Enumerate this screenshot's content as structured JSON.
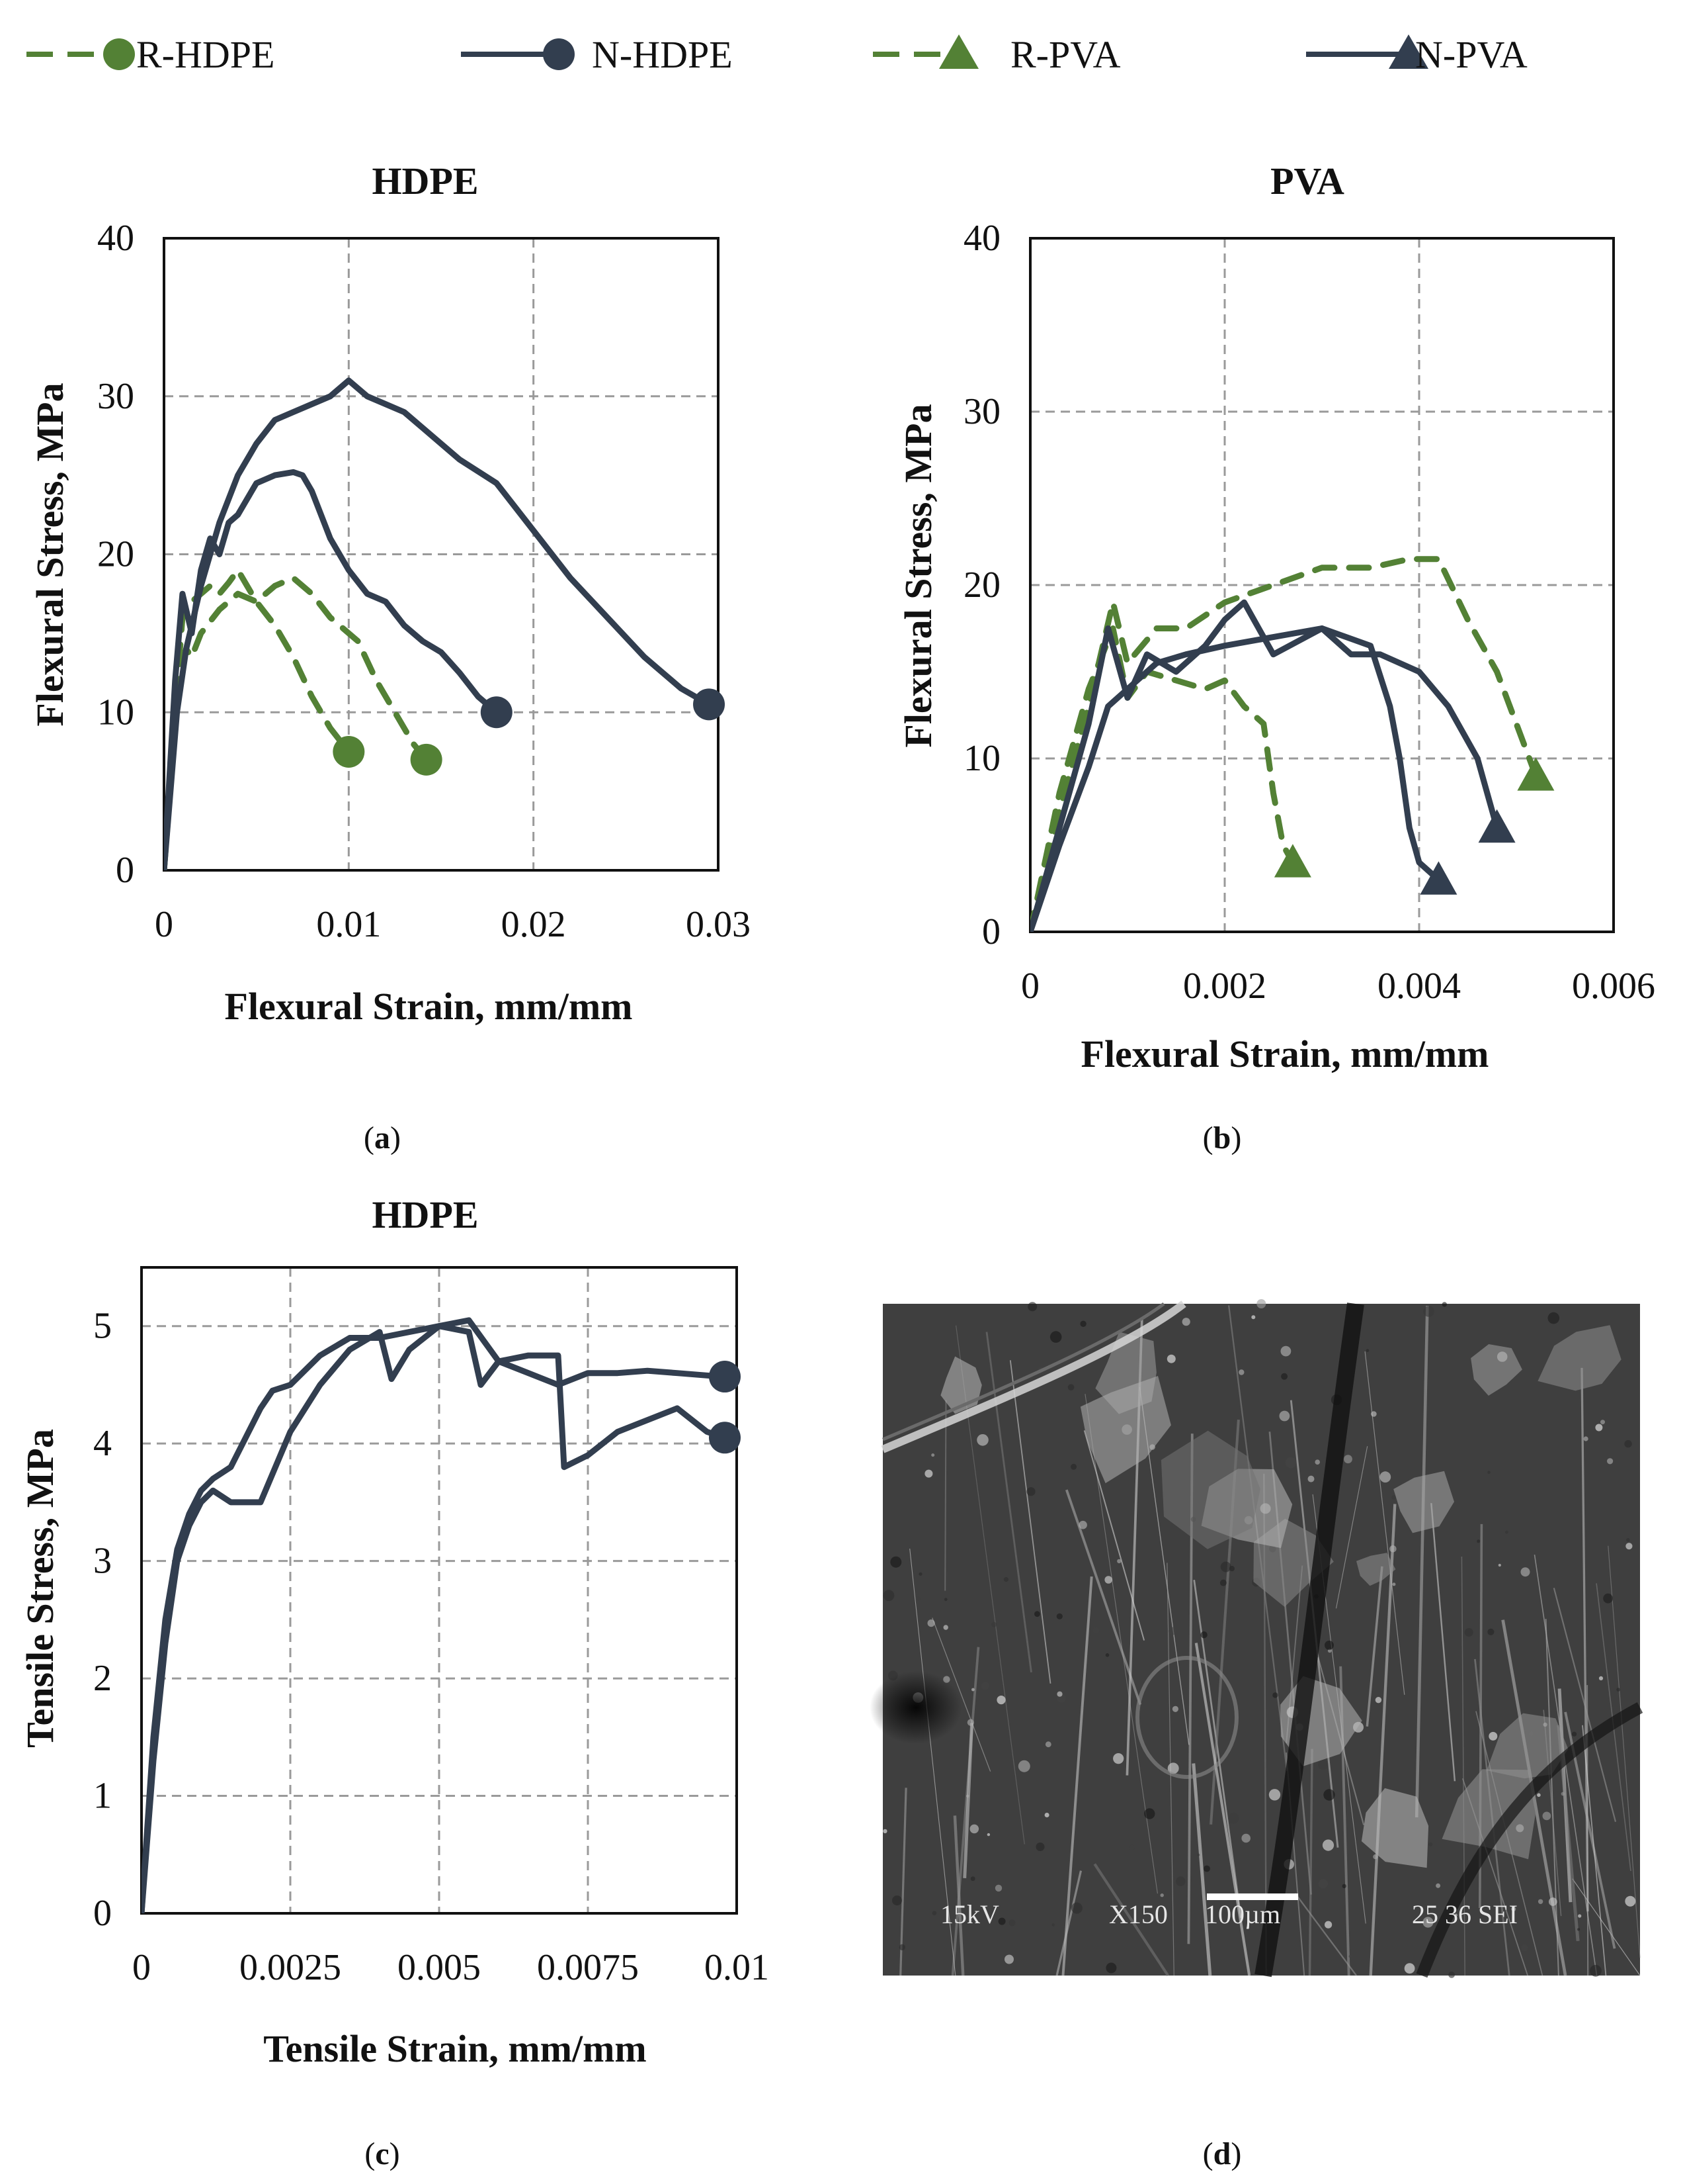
{
  "colors": {
    "recycled": "#538135",
    "new": "#323E4F"
  },
  "legend": [
    {
      "label": "R-HDPE",
      "style": "dashed",
      "marker": "circle",
      "color": "#538135"
    },
    {
      "label": "N-HDPE",
      "style": "solid",
      "marker": "circle",
      "color": "#323E4F"
    },
    {
      "label": "R-PVA",
      "style": "dashed",
      "marker": "triangle",
      "color": "#538135"
    },
    {
      "label": "N-PVA",
      "style": "solid",
      "marker": "triangle",
      "color": "#323E4F"
    }
  ],
  "captions": {
    "a": "a",
    "b": "b",
    "c": "c",
    "d": "d"
  },
  "sem_image": {
    "label_kv": "15kV",
    "label_mag": "X150",
    "label_scale": "100µm",
    "label_id": "25 36 SEI"
  },
  "chart_data": [
    {
      "id": "a",
      "type": "line",
      "title": "HDPE",
      "xlabel": "Flexural Strain, mm/mm",
      "ylabel": "Flexural Stress, MPa",
      "xlim": [
        0,
        0.03
      ],
      "ylim": [
        0,
        40
      ],
      "xticks": [
        0,
        0.01,
        0.02,
        0.03
      ],
      "xtick_labels": [
        "0",
        "0.01",
        "0.02",
        "0.03"
      ],
      "yticks": [
        0,
        10,
        20,
        30,
        40
      ],
      "ytick_labels": [
        "0",
        "10",
        "20",
        "30",
        "40"
      ],
      "grid": true,
      "series": [
        {
          "name": "R-HDPE",
          "style": "dashed",
          "marker": "circle",
          "color": "#538135",
          "x": [
            0,
            0.0005,
            0.0008,
            0.001,
            0.0015,
            0.002,
            0.0025,
            0.003,
            0.0035,
            0.004,
            0.0045,
            0.005,
            0.006,
            0.007,
            0.008,
            0.009,
            0.01
          ],
          "y": [
            0,
            8,
            13,
            16,
            17,
            17.5,
            18,
            17.5,
            18.2,
            19,
            18,
            17,
            15.5,
            13.5,
            11,
            9,
            7.5
          ]
        },
        {
          "name": "R-HDPE",
          "style": "dashed",
          "marker": "circle",
          "color": "#538135",
          "x": [
            0,
            0.0008,
            0.0012,
            0.0015,
            0.002,
            0.003,
            0.004,
            0.005,
            0.006,
            0.007,
            0.008,
            0.009,
            0.0105,
            0.0115,
            0.0125,
            0.0135,
            0.0142
          ],
          "y": [
            0,
            12,
            14,
            13.5,
            15,
            16.5,
            17.5,
            17,
            18,
            18.5,
            17.5,
            16,
            14.5,
            12,
            10,
            8,
            7
          ]
        },
        {
          "name": "N-HDPE",
          "style": "solid",
          "marker": "circle",
          "color": "#323E4F",
          "x": [
            0,
            0.0006,
            0.001,
            0.0015,
            0.002,
            0.0025,
            0.003,
            0.0035,
            0.004,
            0.005,
            0.006,
            0.007,
            0.0075,
            0.008,
            0.009,
            0.01,
            0.011,
            0.012,
            0.013,
            0.014,
            0.015,
            0.016,
            0.017,
            0.018
          ],
          "y": [
            0,
            12,
            17.5,
            15,
            19,
            21,
            20,
            22,
            22.5,
            24.5,
            25,
            25.2,
            25,
            24,
            21,
            19,
            17.5,
            17,
            15.5,
            14.5,
            13.8,
            12.5,
            11,
            10
          ]
        },
        {
          "name": "N-HDPE",
          "style": "solid",
          "marker": "circle",
          "color": "#323E4F",
          "x": [
            0,
            0.0007,
            0.0012,
            0.002,
            0.003,
            0.004,
            0.005,
            0.006,
            0.007,
            0.008,
            0.009,
            0.01,
            0.011,
            0.012,
            0.013,
            0.014,
            0.016,
            0.018,
            0.02,
            0.022,
            0.024,
            0.026,
            0.028,
            0.0295
          ],
          "y": [
            0,
            10,
            14,
            18,
            22,
            25,
            27,
            28.5,
            29,
            29.5,
            30,
            31,
            30,
            29.5,
            29,
            28,
            26,
            24.5,
            21.5,
            18.5,
            16,
            13.5,
            11.5,
            10.5
          ]
        }
      ]
    },
    {
      "id": "b",
      "type": "line",
      "title": "PVA",
      "xlabel": "Flexural Strain, mm/mm",
      "ylabel": "Flexural Stress, MPa",
      "xlim": [
        0,
        0.006
      ],
      "ylim": [
        0,
        40
      ],
      "xticks": [
        0,
        0.002,
        0.004,
        0.006
      ],
      "xtick_labels": [
        "0",
        "0.002",
        "0.004",
        "0.006"
      ],
      "yticks": [
        0,
        10,
        20,
        30,
        40
      ],
      "ytick_labels": [
        "0",
        "10",
        "20",
        "30",
        "40"
      ],
      "grid": true,
      "series": [
        {
          "name": "R-PVA",
          "style": "dashed",
          "marker": "triangle",
          "color": "#538135",
          "x": [
            0,
            0.0003,
            0.0006,
            0.00085,
            0.001,
            0.0012,
            0.0015,
            0.0018,
            0.002,
            0.0022,
            0.0024,
            0.0025,
            0.0026,
            0.0027
          ],
          "y": [
            0,
            8,
            14,
            17.5,
            13.5,
            15,
            14.5,
            14,
            14.5,
            13,
            12,
            8,
            5,
            4
          ]
        },
        {
          "name": "R-PVA",
          "style": "dashed",
          "marker": "triangle",
          "color": "#538135",
          "x": [
            0,
            0.0003,
            0.0006,
            0.00085,
            0.001,
            0.0013,
            0.0016,
            0.002,
            0.0025,
            0.003,
            0.0035,
            0.0039,
            0.0042,
            0.0045,
            0.0048,
            0.005,
            0.0052
          ],
          "y": [
            0,
            7,
            13,
            19,
            15.5,
            17.5,
            17.5,
            19,
            20,
            21,
            21,
            21.5,
            21.5,
            18,
            15,
            12,
            9
          ]
        },
        {
          "name": "N-PVA",
          "style": "solid",
          "marker": "triangle",
          "color": "#323E4F",
          "x": [
            0,
            0.0003,
            0.0006,
            0.0008,
            0.001,
            0.0012,
            0.0015,
            0.0018,
            0.002,
            0.0022,
            0.0025,
            0.003,
            0.0035,
            0.0037,
            0.0038,
            0.0039,
            0.004,
            0.0042
          ],
          "y": [
            0,
            6,
            12,
            17.5,
            13.5,
            16,
            15,
            16.5,
            18,
            19,
            16,
            17.5,
            16.5,
            13,
            10,
            6,
            4,
            3
          ]
        },
        {
          "name": "N-PVA",
          "style": "solid",
          "marker": "triangle",
          "color": "#323E4F",
          "x": [
            0,
            0.0003,
            0.0006,
            0.0008,
            0.001,
            0.0013,
            0.0016,
            0.002,
            0.0025,
            0.003,
            0.0033,
            0.0036,
            0.004,
            0.0043,
            0.0046,
            0.0048
          ],
          "y": [
            0,
            5,
            9.5,
            13,
            14,
            15.5,
            16,
            16.5,
            17,
            17.5,
            16,
            16,
            15,
            13,
            10,
            6
          ]
        }
      ]
    },
    {
      "id": "c",
      "type": "line",
      "title": "HDPE",
      "xlabel": "Tensile Strain, mm/mm",
      "ylabel": "Tensile Stress, MPa",
      "xlim": [
        0,
        0.01
      ],
      "ylim": [
        0,
        5.5
      ],
      "xticks": [
        0,
        0.0025,
        0.005,
        0.0075,
        0.01
      ],
      "xtick_labels": [
        "0",
        "0.0025",
        "0.005",
        "0.0075",
        "0.01"
      ],
      "yticks": [
        0,
        1,
        2,
        3,
        4,
        5
      ],
      "ytick_labels": [
        "0",
        "1",
        "2",
        "3",
        "4",
        "5"
      ],
      "grid": true,
      "series": [
        {
          "name": "N-HDPE",
          "style": "solid",
          "marker": "circle",
          "color": "#323E4F",
          "x": [
            0,
            0.0002,
            0.0004,
            0.0006,
            0.0008,
            0.001,
            0.0012,
            0.0015,
            0.002,
            0.0022,
            0.0025,
            0.003,
            0.0035,
            0.004,
            0.0045,
            0.005,
            0.0055,
            0.0057,
            0.006,
            0.0065,
            0.007,
            0.0075,
            0.008,
            0.0085,
            0.009,
            0.0095,
            0.0098
          ],
          "y": [
            0,
            1.5,
            2.5,
            3.1,
            3.4,
            3.6,
            3.7,
            3.8,
            4.3,
            4.45,
            4.5,
            4.75,
            4.9,
            4.9,
            4.95,
            5.0,
            4.95,
            4.5,
            4.7,
            4.6,
            4.5,
            4.6,
            4.6,
            4.62,
            4.6,
            4.58,
            4.57
          ]
        },
        {
          "name": "N-HDPE",
          "style": "solid",
          "marker": "circle",
          "color": "#323E4F",
          "x": [
            0,
            0.0002,
            0.0004,
            0.0006,
            0.0008,
            0.001,
            0.0012,
            0.0015,
            0.002,
            0.0025,
            0.003,
            0.0035,
            0.004,
            0.0042,
            0.0045,
            0.005,
            0.0055,
            0.006,
            0.0065,
            0.007,
            0.0071,
            0.0075,
            0.008,
            0.0085,
            0.009,
            0.0095,
            0.0098
          ],
          "y": [
            0,
            1.3,
            2.3,
            3.0,
            3.3,
            3.5,
            3.6,
            3.5,
            3.5,
            4.1,
            4.5,
            4.8,
            4.95,
            4.55,
            4.8,
            5.0,
            5.05,
            4.7,
            4.75,
            4.75,
            3.8,
            3.9,
            4.1,
            4.2,
            4.3,
            4.1,
            4.05
          ]
        }
      ]
    }
  ]
}
